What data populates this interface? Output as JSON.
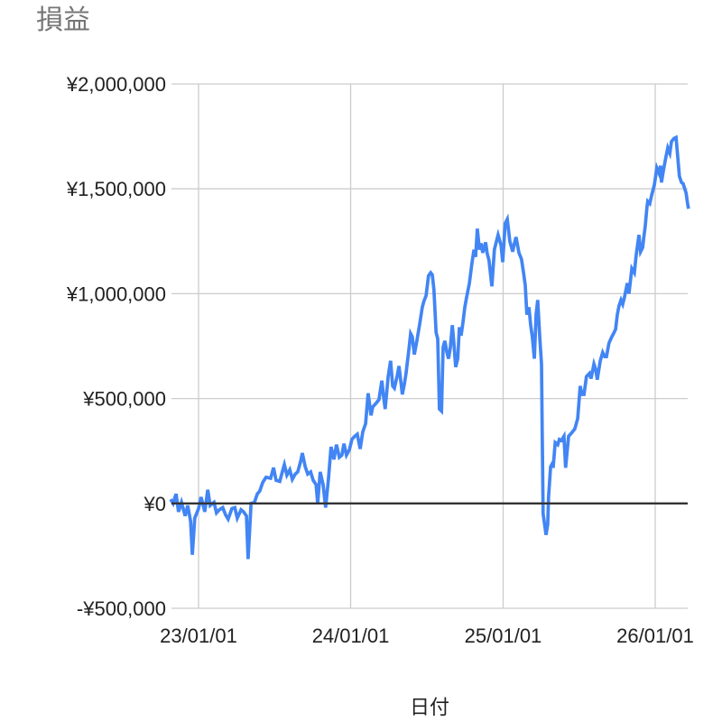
{
  "window": {
    "background": "#ffffff"
  },
  "chart": {
    "title": "損益",
    "colors": {
      "title": "#757575",
      "axis_labels": "#212121",
      "series": "#4285f4",
      "gridline": "#cccccc",
      "zero_line": "#333333",
      "background": "#ffffff"
    }
  },
  "chart_data": {
    "type": "line",
    "title": "損益",
    "xlabel": "日付",
    "ylabel": "",
    "grid": true,
    "legend": "none",
    "x_axis": {
      "unit": "date (YY/MM/DD), stored as days since 23/01/01",
      "ticks": [
        {
          "label": "23/01/01",
          "day": 0
        },
        {
          "label": "24/01/01",
          "day": 365
        },
        {
          "label": "25/01/01",
          "day": 731
        },
        {
          "label": "26/01/01",
          "day": 1096
        }
      ],
      "xlim_days": [
        -65,
        1178
      ]
    },
    "y_axis": {
      "ticks": [
        {
          "label": "¥2,000,000",
          "value": 2000000
        },
        {
          "label": "¥1,500,000",
          "value": 1500000
        },
        {
          "label": "¥1,000,000",
          "value": 1000000
        },
        {
          "label": "¥500,000",
          "value": 500000
        },
        {
          "label": "¥0",
          "value": 0
        },
        {
          "label": "-¥500,000",
          "value": -500000
        }
      ],
      "ylim": [
        -500000,
        2000000
      ],
      "zero_baseline": 0
    },
    "series": [
      {
        "name": "損益",
        "color": "#4285f4",
        "points_format": [
          "days_since_23/01/01",
          "yen"
        ],
        "points": [
          [
            -67,
            20000
          ],
          [
            -61,
            0
          ],
          [
            -54,
            45000
          ],
          [
            -48,
            -40000
          ],
          [
            -41,
            5000
          ],
          [
            -32,
            -60000
          ],
          [
            -26,
            -10000
          ],
          [
            -19,
            -85000
          ],
          [
            -15,
            -245000
          ],
          [
            -9,
            -70000
          ],
          [
            0,
            -25000
          ],
          [
            6,
            30000
          ],
          [
            15,
            -40000
          ],
          [
            22,
            65000
          ],
          [
            28,
            -10000
          ],
          [
            37,
            5000
          ],
          [
            43,
            -45000
          ],
          [
            50,
            -30000
          ],
          [
            58,
            -20000
          ],
          [
            65,
            -55000
          ],
          [
            71,
            -75000
          ],
          [
            80,
            -25000
          ],
          [
            87,
            -20000
          ],
          [
            93,
            -70000
          ],
          [
            102,
            -30000
          ],
          [
            108,
            -40000
          ],
          [
            115,
            -60000
          ],
          [
            119,
            -265000
          ],
          [
            126,
            0
          ],
          [
            134,
            5000
          ],
          [
            141,
            45000
          ],
          [
            147,
            60000
          ],
          [
            154,
            100000
          ],
          [
            162,
            125000
          ],
          [
            173,
            120000
          ],
          [
            180,
            170000
          ],
          [
            186,
            110000
          ],
          [
            195,
            105000
          ],
          [
            201,
            150000
          ],
          [
            206,
            185000
          ],
          [
            212,
            135000
          ],
          [
            219,
            160000
          ],
          [
            225,
            115000
          ],
          [
            232,
            140000
          ],
          [
            238,
            150000
          ],
          [
            245,
            200000
          ],
          [
            249,
            240000
          ],
          [
            256,
            175000
          ],
          [
            262,
            140000
          ],
          [
            269,
            150000
          ],
          [
            275,
            110000
          ],
          [
            282,
            90000
          ],
          [
            286,
            0
          ],
          [
            292,
            150000
          ],
          [
            299,
            90000
          ],
          [
            305,
            -20000
          ],
          [
            312,
            120000
          ],
          [
            318,
            270000
          ],
          [
            325,
            210000
          ],
          [
            331,
            280000
          ],
          [
            338,
            220000
          ],
          [
            344,
            230000
          ],
          [
            349,
            285000
          ],
          [
            355,
            230000
          ],
          [
            362,
            255000
          ],
          [
            368,
            305000
          ],
          [
            375,
            320000
          ],
          [
            381,
            330000
          ],
          [
            388,
            260000
          ],
          [
            394,
            340000
          ],
          [
            401,
            380000
          ],
          [
            407,
            525000
          ],
          [
            414,
            420000
          ],
          [
            418,
            460000
          ],
          [
            425,
            475000
          ],
          [
            433,
            495000
          ],
          [
            440,
            585000
          ],
          [
            444,
            510000
          ],
          [
            448,
            450000
          ],
          [
            455,
            605000
          ],
          [
            461,
            680000
          ],
          [
            466,
            560000
          ],
          [
            470,
            550000
          ],
          [
            477,
            610000
          ],
          [
            481,
            655000
          ],
          [
            485,
            590000
          ],
          [
            489,
            520000
          ],
          [
            494,
            570000
          ],
          [
            498,
            620000
          ],
          [
            505,
            735000
          ],
          [
            509,
            810000
          ],
          [
            513,
            795000
          ],
          [
            518,
            710000
          ],
          [
            524,
            775000
          ],
          [
            531,
            860000
          ],
          [
            537,
            935000
          ],
          [
            541,
            965000
          ],
          [
            546,
            990000
          ],
          [
            552,
            1085000
          ],
          [
            557,
            1100000
          ],
          [
            561,
            1090000
          ],
          [
            565,
            1020000
          ],
          [
            570,
            815000
          ],
          [
            574,
            785000
          ],
          [
            578,
            450000
          ],
          [
            583,
            440000
          ],
          [
            587,
            745000
          ],
          [
            591,
            775000
          ],
          [
            596,
            720000
          ],
          [
            600,
            690000
          ],
          [
            604,
            740000
          ],
          [
            609,
            850000
          ],
          [
            613,
            760000
          ],
          [
            617,
            650000
          ],
          [
            622,
            690000
          ],
          [
            626,
            840000
          ],
          [
            630,
            800000
          ],
          [
            635,
            870000
          ],
          [
            639,
            935000
          ],
          [
            643,
            980000
          ],
          [
            650,
            1050000
          ],
          [
            656,
            1145000
          ],
          [
            661,
            1210000
          ],
          [
            665,
            1175000
          ],
          [
            669,
            1310000
          ],
          [
            674,
            1210000
          ],
          [
            678,
            1240000
          ],
          [
            682,
            1195000
          ],
          [
            689,
            1245000
          ],
          [
            693,
            1190000
          ],
          [
            697,
            1160000
          ],
          [
            704,
            1035000
          ],
          [
            710,
            1210000
          ],
          [
            715,
            1250000
          ],
          [
            719,
            1280000
          ],
          [
            726,
            1230000
          ],
          [
            730,
            1150000
          ],
          [
            736,
            1335000
          ],
          [
            741,
            1355000
          ],
          [
            747,
            1250000
          ],
          [
            754,
            1200000
          ],
          [
            758,
            1240000
          ],
          [
            762,
            1270000
          ],
          [
            769,
            1195000
          ],
          [
            775,
            1165000
          ],
          [
            780,
            1100000
          ],
          [
            784,
            1040000
          ],
          [
            788,
            900000
          ],
          [
            793,
            935000
          ],
          [
            797,
            850000
          ],
          [
            801,
            795000
          ],
          [
            806,
            690000
          ],
          [
            810,
            900000
          ],
          [
            814,
            970000
          ],
          [
            819,
            790000
          ],
          [
            823,
            665000
          ],
          [
            825,
            300000
          ],
          [
            827,
            -50000
          ],
          [
            832,
            -120000
          ],
          [
            834,
            -150000
          ],
          [
            838,
            -100000
          ],
          [
            840,
            30000
          ],
          [
            845,
            175000
          ],
          [
            849,
            190000
          ],
          [
            851,
            170000
          ],
          [
            856,
            290000
          ],
          [
            862,
            280000
          ],
          [
            866,
            305000
          ],
          [
            871,
            300000
          ],
          [
            877,
            320000
          ],
          [
            881,
            170000
          ],
          [
            888,
            320000
          ],
          [
            895,
            335000
          ],
          [
            903,
            355000
          ],
          [
            910,
            405000
          ],
          [
            916,
            560000
          ],
          [
            920,
            520000
          ],
          [
            925,
            520000
          ],
          [
            931,
            605000
          ],
          [
            938,
            620000
          ],
          [
            942,
            595000
          ],
          [
            949,
            665000
          ],
          [
            953,
            640000
          ],
          [
            957,
            590000
          ],
          [
            964,
            680000
          ],
          [
            970,
            720000
          ],
          [
            975,
            700000
          ],
          [
            979,
            700000
          ],
          [
            985,
            765000
          ],
          [
            992,
            795000
          ],
          [
            996,
            810000
          ],
          [
            1001,
            830000
          ],
          [
            1005,
            900000
          ],
          [
            1009,
            940000
          ],
          [
            1014,
            970000
          ],
          [
            1018,
            950000
          ],
          [
            1022,
            980000
          ],
          [
            1029,
            1050000
          ],
          [
            1033,
            1000000
          ],
          [
            1040,
            1120000
          ],
          [
            1046,
            1100000
          ],
          [
            1050,
            1180000
          ],
          [
            1057,
            1280000
          ],
          [
            1061,
            1200000
          ],
          [
            1066,
            1220000
          ],
          [
            1068,
            1260000
          ],
          [
            1072,
            1320000
          ],
          [
            1076,
            1410000
          ],
          [
            1078,
            1440000
          ],
          [
            1083,
            1430000
          ],
          [
            1087,
            1465000
          ],
          [
            1094,
            1520000
          ],
          [
            1100,
            1600000
          ],
          [
            1105,
            1575000
          ],
          [
            1109,
            1610000
          ],
          [
            1111,
            1530000
          ],
          [
            1115,
            1580000
          ],
          [
            1120,
            1635000
          ],
          [
            1126,
            1695000
          ],
          [
            1131,
            1670000
          ],
          [
            1135,
            1725000
          ],
          [
            1141,
            1740000
          ],
          [
            1146,
            1745000
          ],
          [
            1150,
            1655000
          ],
          [
            1154,
            1560000
          ],
          [
            1159,
            1530000
          ],
          [
            1163,
            1525000
          ],
          [
            1170,
            1480000
          ],
          [
            1174,
            1425000
          ],
          [
            1176,
            1405000
          ]
        ]
      }
    ]
  }
}
